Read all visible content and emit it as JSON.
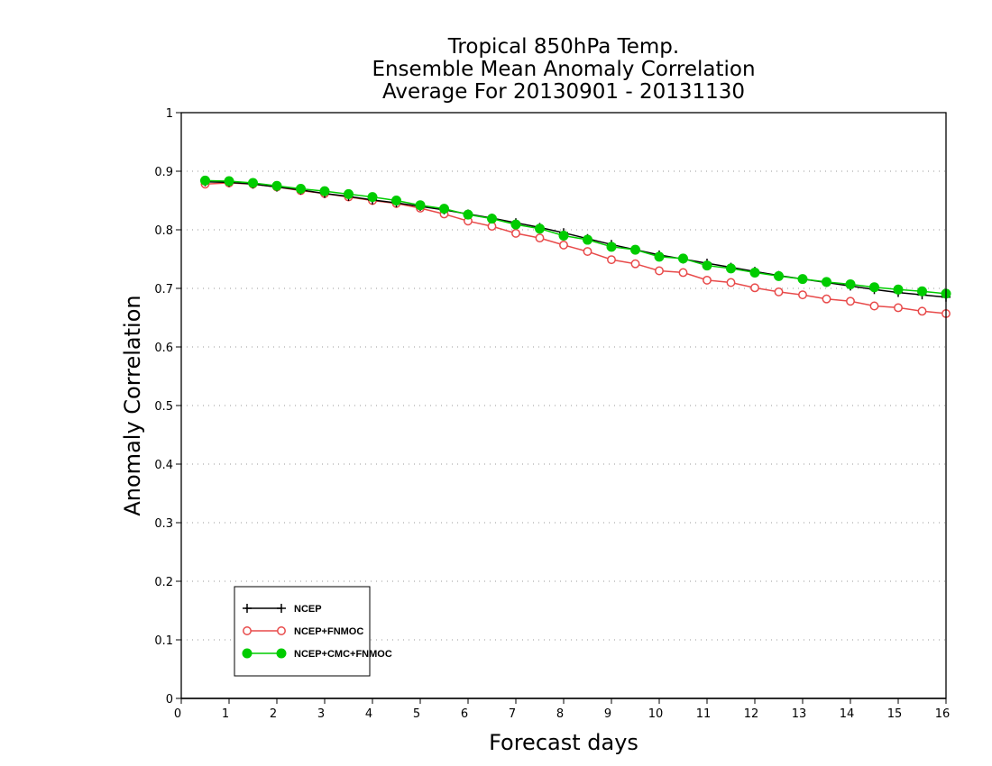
{
  "chart_data": {
    "type": "line",
    "title": [
      "Tropical 850hPa Temp.",
      "Ensemble Mean Anomaly Correlation",
      "Average For 20130901 - 20131130"
    ],
    "xlabel": "Forecast days",
    "ylabel": "Anomaly Correlation",
    "xlim": [
      0,
      16
    ],
    "ylim": [
      0,
      1
    ],
    "x_ticks": [
      "0",
      "1",
      "2",
      "3",
      "4",
      "5",
      "6",
      "7",
      "8",
      "9",
      "10",
      "11",
      "12",
      "13",
      "14",
      "15",
      "16"
    ],
    "y_ticks": [
      "0",
      "0.1",
      "0.2",
      "0.3",
      "0.4",
      "0.5",
      "0.6",
      "0.7",
      "0.8",
      "0.9",
      "1"
    ],
    "grid": "horizontal-dotted",
    "legend_position": "bottom-left",
    "x": [
      0.5,
      1,
      1.5,
      2,
      2.5,
      3,
      3.5,
      4,
      4.5,
      5,
      5.5,
      6,
      6.5,
      7,
      7.5,
      8,
      8.5,
      9,
      9.5,
      10,
      10.5,
      11,
      11.5,
      12,
      12.5,
      13,
      13.5,
      14,
      14.5,
      15,
      15.5,
      16
    ],
    "series": [
      {
        "name": "NCEP",
        "color": "#000000",
        "marker": "plus",
        "values": [
          0.882,
          0.881,
          0.878,
          0.873,
          0.868,
          0.862,
          0.857,
          0.851,
          0.846,
          0.84,
          0.834,
          0.827,
          0.82,
          0.812,
          0.804,
          0.795,
          0.785,
          0.775,
          0.766,
          0.757,
          0.75,
          0.743,
          0.736,
          0.729,
          0.722,
          0.716,
          0.71,
          0.704,
          0.698,
          0.693,
          0.689,
          0.685
        ]
      },
      {
        "name": "NCEP+FNMOC",
        "color": "#e84a4a",
        "marker": "open-circle",
        "values": [
          0.878,
          0.88,
          0.878,
          0.873,
          0.867,
          0.862,
          0.856,
          0.85,
          0.845,
          0.837,
          0.827,
          0.815,
          0.806,
          0.794,
          0.786,
          0.774,
          0.763,
          0.749,
          0.742,
          0.73,
          0.727,
          0.714,
          0.71,
          0.701,
          0.694,
          0.689,
          0.682,
          0.678,
          0.67,
          0.667,
          0.661,
          0.657
        ]
      },
      {
        "name": "NCEP+CMC+FNMOC",
        "color": "#00cc00",
        "marker": "filled-circle",
        "values": [
          0.884,
          0.883,
          0.88,
          0.875,
          0.87,
          0.866,
          0.861,
          0.856,
          0.85,
          0.842,
          0.836,
          0.826,
          0.819,
          0.809,
          0.802,
          0.79,
          0.783,
          0.771,
          0.766,
          0.754,
          0.751,
          0.739,
          0.734,
          0.727,
          0.721,
          0.716,
          0.711,
          0.707,
          0.702,
          0.698,
          0.695,
          0.691
        ]
      }
    ]
  }
}
